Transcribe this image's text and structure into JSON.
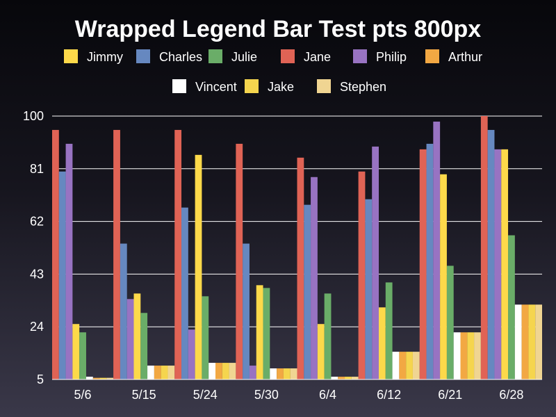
{
  "chart_data": {
    "type": "bar",
    "title": "Wrapped Legend Bar Test pts 800px",
    "xlabel": "",
    "ylabel": "",
    "ylim": [
      5,
      100
    ],
    "yticks": [
      5,
      24,
      43,
      62,
      81,
      100
    ],
    "grid": true,
    "legend_position": "top",
    "categories": [
      "5/6",
      "5/15",
      "5/24",
      "5/30",
      "6/4",
      "6/12",
      "6/21",
      "6/28"
    ],
    "series": [
      {
        "name": "Jane",
        "color": "#e06355",
        "values": [
          95,
          95,
          95,
          90,
          85,
          80,
          88,
          100
        ]
      },
      {
        "name": "Charles",
        "color": "#6688c0",
        "values": [
          80,
          54,
          67,
          54,
          68,
          70,
          90,
          95
        ]
      },
      {
        "name": "Philip",
        "color": "#9873c2",
        "values": [
          90,
          34,
          23,
          10,
          78,
          89,
          98,
          88
        ]
      },
      {
        "name": "Jimmy",
        "color": "#fdd94a",
        "values": [
          25,
          36,
          86,
          39,
          25,
          31,
          79,
          88
        ]
      },
      {
        "name": "Julie",
        "color": "#6aad68",
        "values": [
          22,
          29,
          35,
          38,
          36,
          40,
          46,
          57
        ]
      },
      {
        "name": "Vincent",
        "color": "#ffffff",
        "values": [
          6,
          10,
          11,
          9,
          6,
          15,
          22,
          32
        ]
      },
      {
        "name": "Arthur",
        "color": "#f2a843",
        "values": [
          5.6,
          10,
          11,
          9,
          6,
          15,
          22,
          32
        ]
      },
      {
        "name": "Jake",
        "color": "#f5d54e",
        "values": [
          5.6,
          10,
          11,
          9,
          6,
          15,
          22,
          32
        ]
      },
      {
        "name": "Stephen",
        "color": "#f0d592",
        "values": [
          5.6,
          10,
          11,
          9,
          6,
          15,
          22,
          32
        ]
      }
    ],
    "legend_order": [
      "Jimmy",
      "Charles",
      "Julie",
      "Jane",
      "Philip",
      "Arthur",
      "Vincent",
      "Jake",
      "Stephen"
    ]
  }
}
